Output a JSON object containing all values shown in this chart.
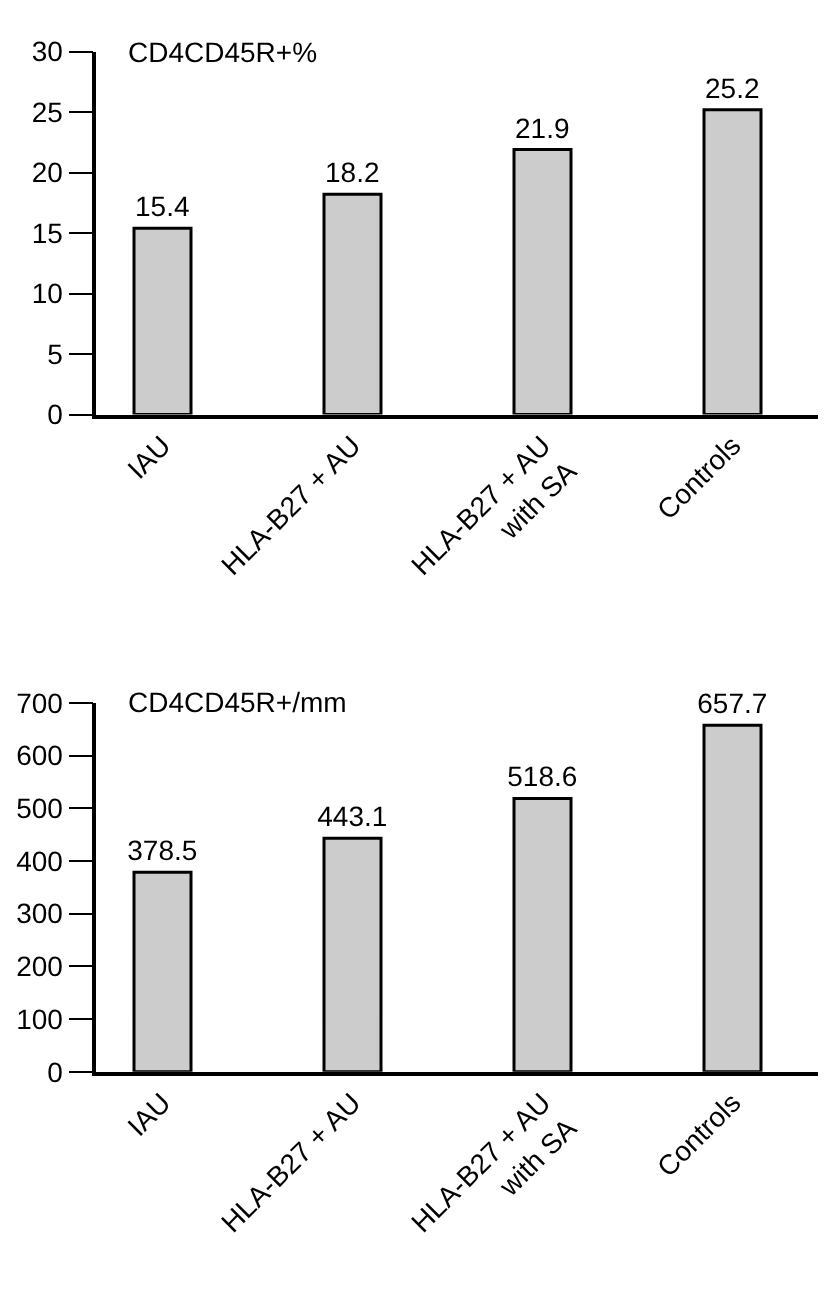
{
  "chart_data": [
    {
      "type": "bar",
      "title": "CD4CD45R+%",
      "categories": [
        "IAU",
        "HLA-B27 + AU",
        "HLA-B27 + AU\nwith SA",
        "Controls"
      ],
      "values": [
        15.4,
        18.2,
        21.9,
        25.2
      ],
      "color": "#cccccc",
      "ylim": [
        0,
        30
      ],
      "yticks": [
        0,
        5,
        10,
        15,
        20,
        25,
        30
      ],
      "data_labels": true
    },
    {
      "type": "bar",
      "title": "CD4CD45R+/mm",
      "categories": [
        "IAU",
        "HLA-B27 + AU",
        "HLA-B27 + AU\nwith SA",
        "Controls"
      ],
      "values": [
        378.5,
        443.1,
        518.6,
        657.7
      ],
      "color": "#cccccc",
      "ylim": [
        0,
        700
      ],
      "yticks": [
        0,
        100,
        200,
        300,
        400,
        500,
        600,
        700
      ],
      "data_labels": true
    }
  ]
}
